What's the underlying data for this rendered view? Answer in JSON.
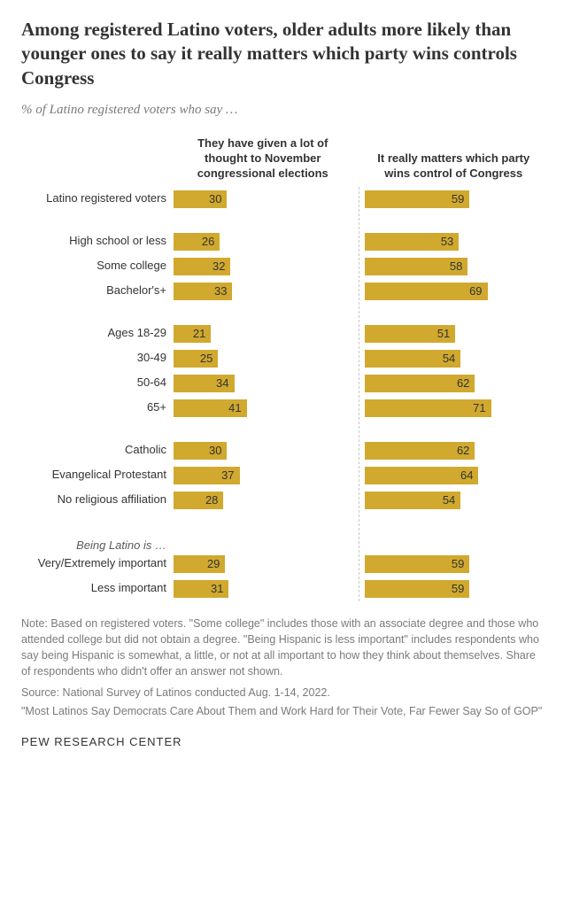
{
  "title": "Among registered Latino voters, older adults more likely than younger ones to say it really matters which party wins controls Congress",
  "subtitle": "% of Latino registered voters who say …",
  "panel_headers": [
    "They have given a lot of thought to November congressional elections",
    "It really matters which party wins control of Congress"
  ],
  "bar_color": "#d0a92e",
  "value_text_color": "#333333",
  "max_scale": 100,
  "groups": [
    {
      "heading": null,
      "rows": [
        {
          "label": "Latino registered voters",
          "values": [
            30,
            59
          ]
        }
      ]
    },
    {
      "heading": null,
      "rows": [
        {
          "label": "High school or less",
          "values": [
            26,
            53
          ]
        },
        {
          "label": "Some college",
          "values": [
            32,
            58
          ]
        },
        {
          "label": "Bachelor's+",
          "values": [
            33,
            69
          ]
        }
      ]
    },
    {
      "heading": null,
      "rows": [
        {
          "label": "Ages 18-29",
          "values": [
            21,
            51
          ]
        },
        {
          "label": "30-49",
          "values": [
            25,
            54
          ]
        },
        {
          "label": "50-64",
          "values": [
            34,
            62
          ]
        },
        {
          "label": "65+",
          "values": [
            41,
            71
          ]
        }
      ]
    },
    {
      "heading": null,
      "rows": [
        {
          "label": "Catholic",
          "values": [
            30,
            62
          ]
        },
        {
          "label": "Evangelical Protestant",
          "values": [
            37,
            64
          ]
        },
        {
          "label": "No religious affiliation",
          "values": [
            28,
            54
          ]
        }
      ]
    },
    {
      "heading": "Being Latino is …",
      "rows": [
        {
          "label": "Very/Extremely important",
          "values": [
            29,
            59
          ]
        },
        {
          "label": "Less important",
          "values": [
            31,
            59
          ]
        }
      ]
    }
  ],
  "note": "Note: Based on registered voters. \"Some college\" includes those with an associate degree and those who attended college but did not obtain a degree. \"Being Hispanic is less important\" includes respondents who say being Hispanic is somewhat, a little, or not at all important to how they think about themselves. Share of respondents who didn't offer an answer not shown.",
  "source": "Source: National Survey of Latinos conducted Aug. 1-14, 2022.",
  "quote": "\"Most Latinos Say Democrats Care About Them and Work Hard for Their Vote, Far Fewer Say So of GOP\"",
  "footer_brand": "PEW RESEARCH CENTER"
}
